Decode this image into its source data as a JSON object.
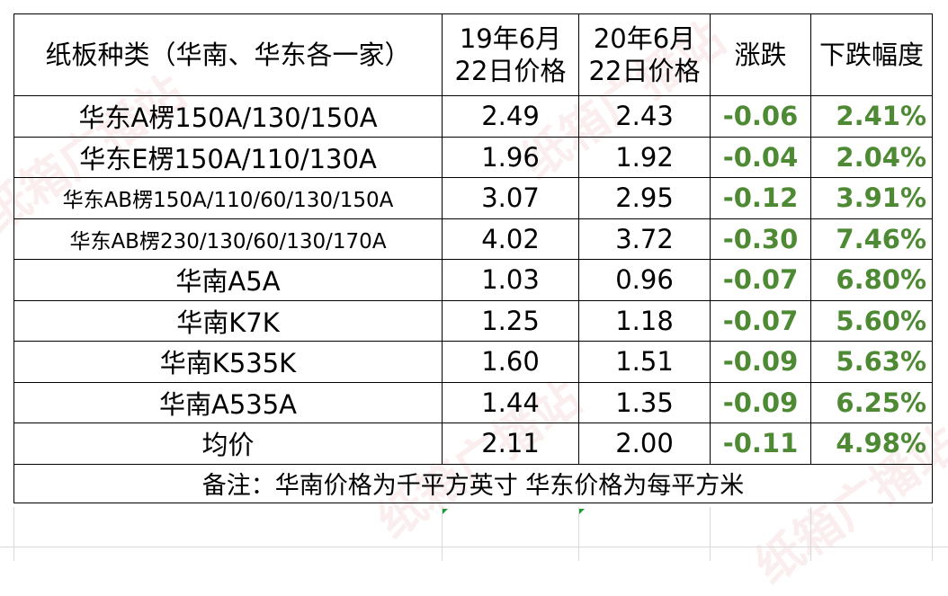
{
  "table": {
    "headers": {
      "type": "纸板种类（华南、华东各一家）",
      "price_2019": [
        "19年6月",
        "22日价格"
      ],
      "price_2020": [
        "20年6月",
        "22日价格"
      ],
      "change": "涨跌",
      "drop_rate": "下跌幅度"
    },
    "rows": [
      {
        "name": "华东A楞150A/130/150A",
        "p2019": "2.49",
        "p2020": "2.43",
        "change": "-0.06",
        "rate": "2.41%"
      },
      {
        "name": "华东E楞150A/110/130A",
        "p2019": "1.96",
        "p2020": "1.92",
        "change": "-0.04",
        "rate": "2.04%"
      },
      {
        "name": "华东AB楞150A/110/60/130/150A",
        "p2019": "3.07",
        "p2020": "2.95",
        "change": "-0.12",
        "rate": "3.91%"
      },
      {
        "name": "华东AB楞230/130/60/130/170A",
        "p2019": "4.02",
        "p2020": "3.72",
        "change": "-0.30",
        "rate": "7.46%"
      },
      {
        "name": "华南A5A",
        "p2019": "1.03",
        "p2020": "0.96",
        "change": "-0.07",
        "rate": "6.80%"
      },
      {
        "name": "华南K7K",
        "p2019": "1.25",
        "p2020": "1.18",
        "change": "-0.07",
        "rate": "5.60%"
      },
      {
        "name": "华南K535K",
        "p2019": "1.60",
        "p2020": "1.51",
        "change": "-0.09",
        "rate": "5.63%"
      },
      {
        "name": "华南A535A",
        "p2019": "1.44",
        "p2020": "1.35",
        "change": "-0.09",
        "rate": "6.25%"
      },
      {
        "name": "均价",
        "p2019": "2.11",
        "p2020": "2.00",
        "change": "-0.11",
        "rate": "4.98%"
      }
    ],
    "note": "备注：华南价格为千平方英寸 华东价格为每平方米"
  },
  "watermark": "纸箱广播站",
  "colors": {
    "change_text": "#4e8a34",
    "grid_line": "#d9d9d9",
    "watermark": "#e19696"
  }
}
